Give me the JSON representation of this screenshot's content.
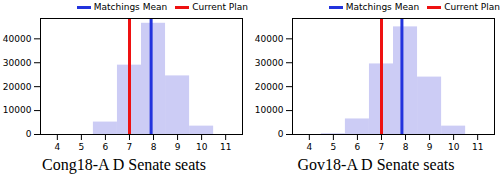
{
  "chart_data": [
    {
      "type": "histogram",
      "title": "Cong18-A D Senate seats",
      "bins": [
        5.5,
        6.5,
        7.5,
        8.5,
        9.5,
        10.5
      ],
      "counts": [
        5200,
        29000,
        46500,
        24500,
        3500
      ],
      "color": "#ccccf5",
      "vlines": [
        {
          "name": "Matchings Mean",
          "value": 7.9,
          "color": "#2233dd"
        },
        {
          "name": "Current Plan",
          "value": 7,
          "color": "#ee1111"
        }
      ],
      "legend": "upper right",
      "xlim": [
        3.3,
        11.7
      ],
      "xticks": [
        4,
        5,
        6,
        7,
        8,
        9,
        10,
        11
      ],
      "ylim": [
        0,
        48500
      ],
      "yticks": [
        0,
        10000,
        20000,
        30000,
        40000
      ]
    },
    {
      "type": "histogram",
      "title": "Gov18-A D Senate seats",
      "bins": [
        4.5,
        5.5,
        6.5,
        7.5,
        8.5,
        9.5,
        10.5
      ],
      "counts": [
        300,
        6500,
        29500,
        45000,
        24000,
        3500
      ],
      "color": "#ccccf5",
      "vlines": [
        {
          "name": "Matchings Mean",
          "value": 7.85,
          "color": "#2233dd"
        },
        {
          "name": "Current Plan",
          "value": 7,
          "color": "#ee1111"
        }
      ],
      "legend": "upper right",
      "xlim": [
        3.3,
        11.7
      ],
      "xticks": [
        4,
        5,
        6,
        7,
        8,
        9,
        10,
        11
      ],
      "ylim": [
        0,
        48500
      ],
      "yticks": [
        0,
        10000,
        20000,
        30000,
        40000
      ]
    }
  ]
}
